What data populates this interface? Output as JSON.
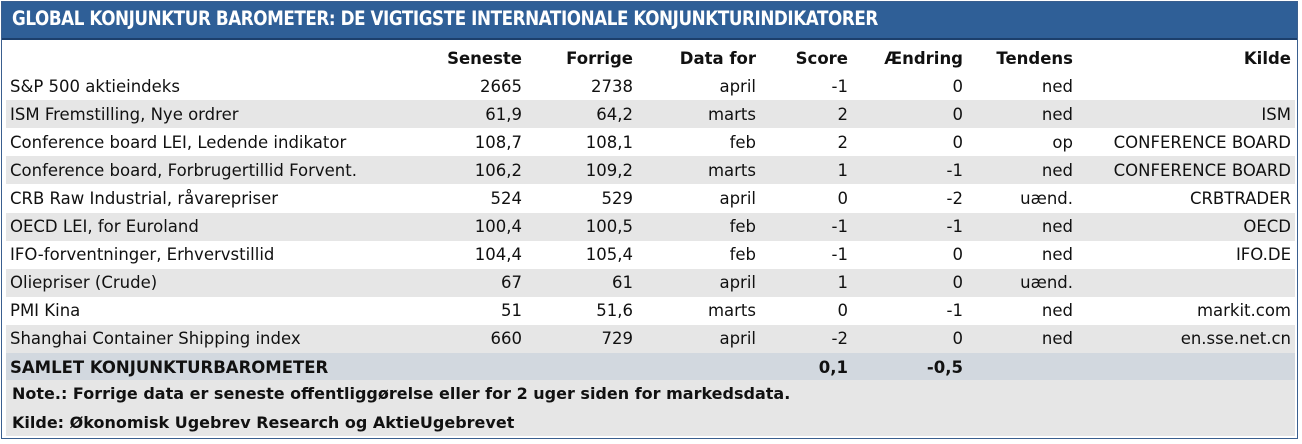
{
  "title": "Global Konjunktur Barometer: De vigtigste internationale konjunkturindikatorer",
  "columns": [
    "",
    "Seneste",
    "Forrige",
    "Data for",
    "Score",
    "Ændring",
    "Tendens",
    "Kilde"
  ],
  "rows": [
    {
      "name": "S&P 500 aktieindeks",
      "seneste": "2665",
      "forrige": "2738",
      "data_for": "april",
      "score": "-1",
      "aendring": "0",
      "tendens": "ned",
      "kilde": ""
    },
    {
      "name": "ISM Fremstilling, Nye ordrer",
      "seneste": "61,9",
      "forrige": "64,2",
      "data_for": "marts",
      "score": "2",
      "aendring": "0",
      "tendens": "ned",
      "kilde": "ISM"
    },
    {
      "name": "Conference board LEI, Ledende indikator",
      "seneste": "108,7",
      "forrige": "108,1",
      "data_for": "feb",
      "score": "2",
      "aendring": "0",
      "tendens": "op",
      "kilde": "CONFERENCE BOARD"
    },
    {
      "name": "Conference board, Forbrugertillid Forvent.",
      "seneste": "106,2",
      "forrige": "109,2",
      "data_for": "marts",
      "score": "1",
      "aendring": "-1",
      "tendens": "ned",
      "kilde": "CONFERENCE BOARD"
    },
    {
      "name": "CRB Raw Industrial, råvarepriser",
      "seneste": "524",
      "forrige": "529",
      "data_for": "april",
      "score": "0",
      "aendring": "-2",
      "tendens": "uænd.",
      "kilde": "CRBTRADER"
    },
    {
      "name": "OECD LEI, for Euroland",
      "seneste": "100,4",
      "forrige": "100,5",
      "data_for": "feb",
      "score": "-1",
      "aendring": "-1",
      "tendens": "ned",
      "kilde": "OECD"
    },
    {
      "name": "IFO-forventninger, Erhvervstillid",
      "seneste": "104,4",
      "forrige": "105,4",
      "data_for": "feb",
      "score": "-1",
      "aendring": "0",
      "tendens": "ned",
      "kilde": "IFO.DE"
    },
    {
      "name": "Oliepriser (Crude)",
      "seneste": "67",
      "forrige": "61",
      "data_for": "april",
      "score": "1",
      "aendring": "0",
      "tendens": "uænd.",
      "kilde": ""
    },
    {
      "name": "PMI Kina",
      "seneste": "51",
      "forrige": "51,6",
      "data_for": "marts",
      "score": "0",
      "aendring": "-1",
      "tendens": "ned",
      "kilde": "markit.com"
    },
    {
      "name": "Shanghai  Container Shipping index",
      "seneste": "660",
      "forrige": "729",
      "data_for": "april",
      "score": "-2",
      "aendring": "0",
      "tendens": "ned",
      "kilde": "en.sse.net.cn"
    }
  ],
  "total": {
    "name": "SAMLET KONJUNKTURBAROMETER",
    "score": "0,1",
    "aendring": "-0,5"
  },
  "note": "Note.: Forrige data er seneste offentliggørelse eller for 2 uger siden for markedsdata.",
  "source": "Kilde: Økonomisk Ugebrev Research og AktieUgebrevet",
  "colors": {
    "header_bg": "#2f5f97",
    "row_shade": "#e6e6e6",
    "total_bg": "#d2d8df"
  }
}
